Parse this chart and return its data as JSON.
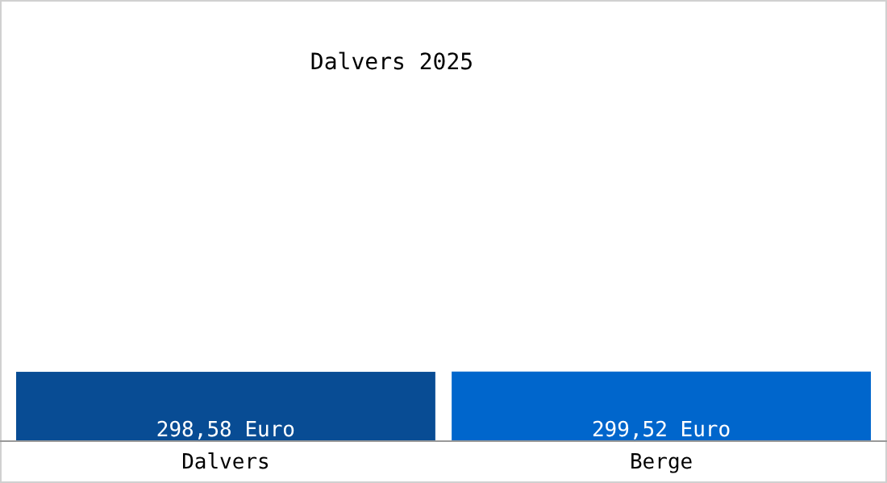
{
  "chart_data": {
    "type": "bar",
    "title": "Dalvers 2025",
    "categories": [
      "Dalvers",
      "Berge"
    ],
    "values": [
      298.58,
      299.52
    ],
    "colors": [
      "#084c94",
      "#0066cc"
    ],
    "value_labels": [
      "298,58 Euro",
      "299,52 Euro"
    ],
    "ylim": [
      0,
      1900
    ],
    "tick_labels": "x"
  }
}
